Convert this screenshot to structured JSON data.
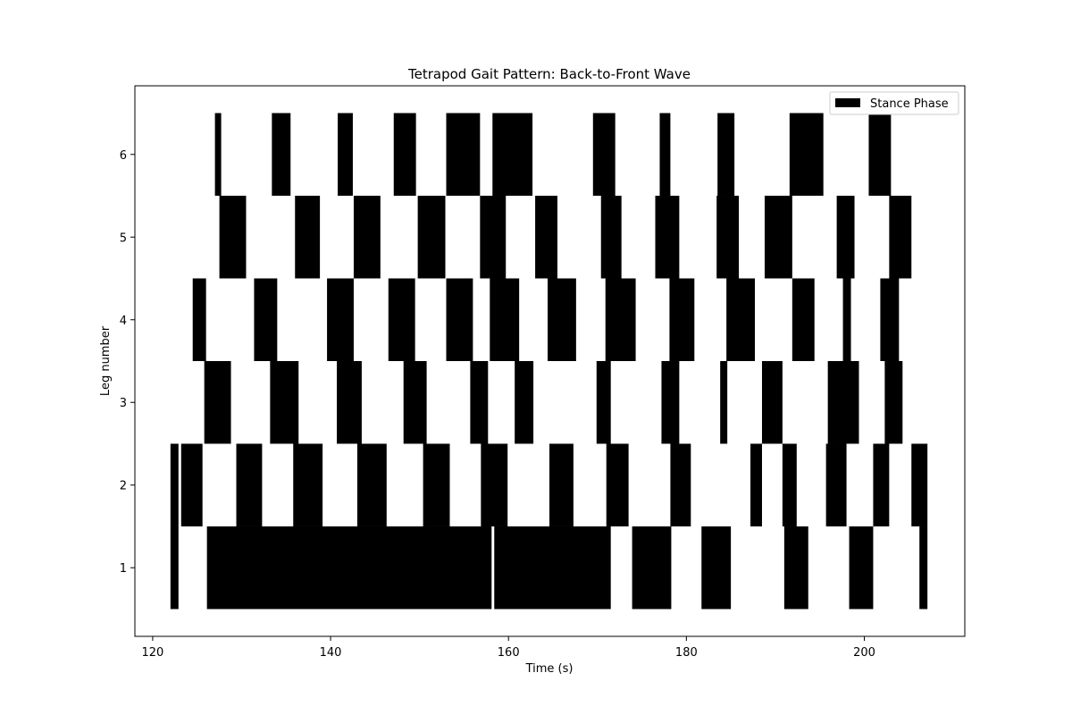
{
  "chart_data": {
    "type": "broken-barh",
    "title": "Tetrapod Gait Pattern: Back-to-Front Wave",
    "xlabel": "Time (s)",
    "ylabel": "Leg number",
    "xlim": [
      118,
      211.3
    ],
    "ylim": [
      0.17,
      6.83
    ],
    "xticks": [
      120,
      140,
      160,
      180,
      200
    ],
    "yticks": [
      1,
      2,
      3,
      4,
      5,
      6
    ],
    "grid": false,
    "legend": {
      "position": "upper right",
      "entries": [
        "Stance Phase"
      ]
    },
    "bar_color": "#000000",
    "bar_height": 1.0,
    "series": [
      {
        "leg": 1,
        "intervals": [
          [
            122.0,
            122.9
          ],
          [
            126.1,
            158.1
          ],
          [
            158.4,
            171.5
          ],
          [
            173.9,
            178.3
          ],
          [
            181.7,
            185.0
          ],
          [
            191.0,
            193.7
          ],
          [
            198.3,
            201.0
          ],
          [
            206.2,
            207.1
          ]
        ]
      },
      {
        "leg": 2,
        "intervals": [
          [
            122.0,
            122.9
          ],
          [
            123.2,
            125.6
          ],
          [
            129.4,
            132.3
          ],
          [
            135.8,
            139.1
          ],
          [
            143.0,
            146.3
          ],
          [
            150.4,
            153.4
          ],
          [
            156.9,
            159.9
          ],
          [
            164.6,
            167.3
          ],
          [
            171.0,
            173.5
          ],
          [
            178.2,
            180.5
          ],
          [
            187.2,
            188.5
          ],
          [
            190.8,
            192.4
          ],
          [
            195.7,
            198.0
          ],
          [
            201.0,
            202.8
          ],
          [
            205.3,
            207.1
          ]
        ]
      },
      {
        "leg": 3,
        "intervals": [
          [
            125.8,
            128.8
          ],
          [
            133.2,
            136.4
          ],
          [
            140.7,
            143.5
          ],
          [
            148.2,
            150.8
          ],
          [
            155.7,
            157.7
          ],
          [
            160.7,
            162.8
          ],
          [
            169.9,
            171.5
          ],
          [
            177.2,
            179.2
          ],
          [
            183.8,
            184.6
          ],
          [
            188.5,
            190.8
          ],
          [
            195.9,
            199.4
          ],
          [
            202.3,
            204.3
          ]
        ]
      },
      {
        "leg": 4,
        "intervals": [
          [
            124.5,
            126.0
          ],
          [
            131.4,
            134.0
          ],
          [
            139.6,
            142.6
          ],
          [
            146.5,
            149.5
          ],
          [
            153.0,
            156.0
          ],
          [
            157.9,
            161.2
          ],
          [
            164.4,
            167.6
          ],
          [
            170.9,
            174.3
          ],
          [
            178.1,
            180.9
          ],
          [
            184.5,
            187.7
          ],
          [
            191.9,
            194.4
          ],
          [
            197.6,
            198.5
          ],
          [
            201.8,
            203.9
          ]
        ]
      },
      {
        "leg": 5,
        "intervals": [
          [
            127.5,
            130.5
          ],
          [
            136.0,
            138.8
          ],
          [
            142.6,
            145.6
          ],
          [
            149.8,
            152.9
          ],
          [
            156.8,
            159.7
          ],
          [
            163.0,
            165.5
          ],
          [
            170.4,
            172.7
          ],
          [
            176.5,
            179.2
          ],
          [
            183.4,
            185.9
          ],
          [
            188.8,
            191.9
          ],
          [
            196.9,
            198.9
          ],
          [
            202.8,
            205.3
          ]
        ]
      },
      {
        "leg": 6,
        "intervals": [
          [
            127.0,
            127.7
          ],
          [
            133.4,
            135.5
          ],
          [
            140.8,
            142.5
          ],
          [
            147.1,
            149.6
          ],
          [
            153.0,
            156.8
          ],
          [
            158.2,
            162.7
          ],
          [
            169.5,
            172.0
          ],
          [
            177.0,
            178.2
          ],
          [
            183.5,
            185.4
          ],
          [
            191.6,
            195.4
          ],
          [
            200.5,
            203.0
          ]
        ]
      }
    ]
  }
}
